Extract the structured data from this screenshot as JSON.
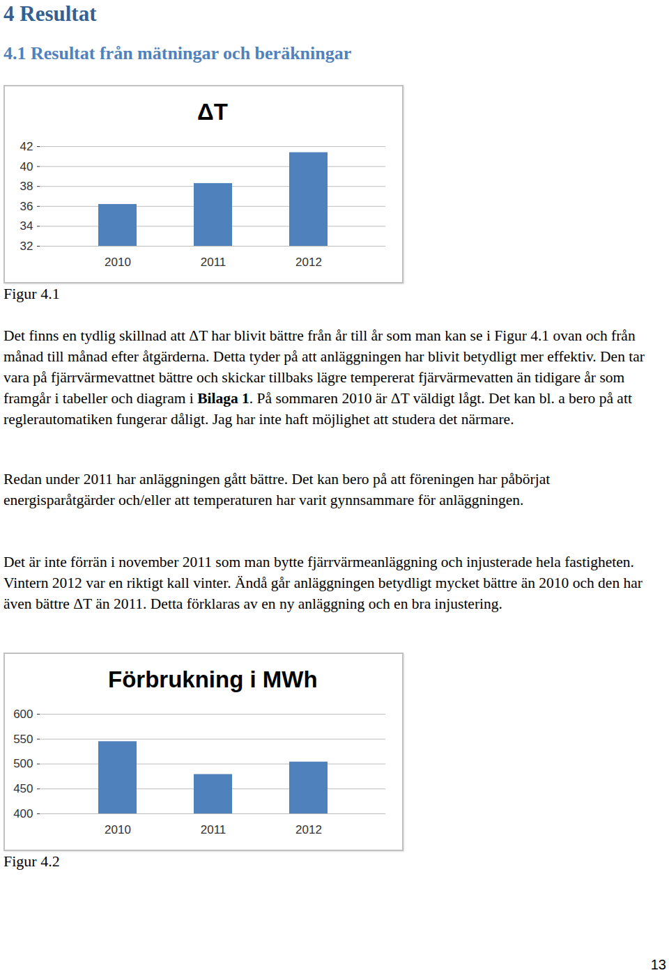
{
  "heading": "4 Resultat",
  "subheading": "4.1 Resultat från mätningar och beräkningar",
  "chart_data": [
    {
      "type": "bar",
      "title": "ΔT",
      "caption": "Figur 4.1",
      "categories": [
        "2010",
        "2011",
        "2012"
      ],
      "values": [
        36.2,
        38.3,
        41.4
      ],
      "color": "#4f81bd",
      "ylim": [
        32,
        42
      ],
      "yticks": [
        32,
        34,
        36,
        38,
        40,
        42
      ],
      "grid": true
    },
    {
      "type": "bar",
      "title": "Förbrukning i MWh",
      "caption": "Figur 4.2",
      "categories": [
        "2010",
        "2011",
        "2012"
      ],
      "values": [
        545,
        479,
        504
      ],
      "color": "#4f81bd",
      "ylim": [
        400,
        600
      ],
      "yticks": [
        400,
        450,
        500,
        550,
        600
      ],
      "grid": true
    }
  ],
  "paragraphs": [
    [
      {
        "text": "Det finns en tydlig skillnad att ΔT har blivit bättre från år till år som man kan se i Figur 4.1 ovan och från månad till månad efter åtgärderna. Detta tyder på att anläggningen har blivit betydligt mer effektiv. Den tar vara på fjärrvärmevattnet bättre och skickar tillbaks lägre tempererat fjärvärmevatten än tidigare år som framgår i tabeller och diagram i "
      },
      {
        "text": "Bilaga 1",
        "bold": true
      },
      {
        "text": ". På sommaren 2010 är ΔT väldigt lågt. Det kan bl. a bero på att reglerautomatiken fungerar dåligt. Jag har inte haft möjlighet att studera det närmare."
      }
    ],
    [
      {
        "text": "Redan under 2011 har anläggningen gått bättre. Det kan bero på att föreningen har påbörjat energisparåtgärder och/eller att temperaturen har varit gynnsammare för anläggningen."
      }
    ],
    [
      {
        "text": "Det är inte förrän i november 2011 som man bytte fjärrvärmeanläggning och injusterade hela fastigheten. Vintern 2012 var en riktigt kall vinter. Ändå går anläggningen betydligt mycket bättre än 2010 och den har även bättre ΔT än 2011. Detta förklaras av en ny anläggning och en bra injustering."
      }
    ]
  ],
  "page_number": "13"
}
